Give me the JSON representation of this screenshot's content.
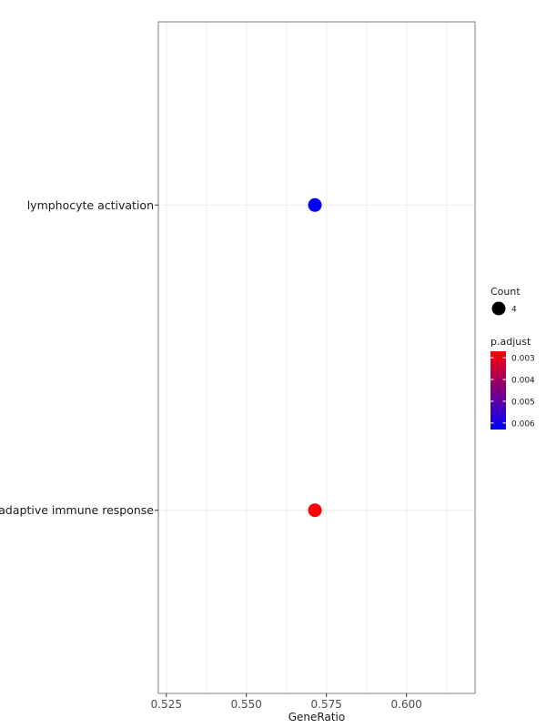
{
  "chart_data": {
    "type": "scatter",
    "title": "",
    "xlabel": "GeneRatio",
    "ylabel": "",
    "xlim": [
      0.5225,
      0.6214
    ],
    "x_ticks": [
      0.525,
      0.55,
      0.575,
      0.6
    ],
    "x_tick_labels": [
      "0.525",
      "0.550",
      "0.575",
      "0.600"
    ],
    "categories": [
      "adaptive immune response",
      "lymphocyte activation"
    ],
    "points": [
      {
        "category": "adaptive immune response",
        "gene_ratio": 0.5714,
        "count": 4,
        "p_adjust": 0.0027
      },
      {
        "category": "lymphocyte activation",
        "gene_ratio": 0.5714,
        "count": 4,
        "p_adjust": 0.0063
      }
    ],
    "grid": true,
    "legend_placement": "right",
    "legend": {
      "size_title": "Count",
      "size_entries": [
        {
          "label": "4",
          "value": 4
        }
      ],
      "color_title": "p.adjust",
      "color_low": "#ff0000",
      "color_high": "#0000ff",
      "color_range": [
        0.0027,
        0.0063
      ],
      "color_ticks": [
        0.003,
        0.004,
        0.005,
        0.006
      ],
      "color_tick_labels": [
        "0.003",
        "0.004",
        "0.005",
        "0.006"
      ]
    }
  }
}
